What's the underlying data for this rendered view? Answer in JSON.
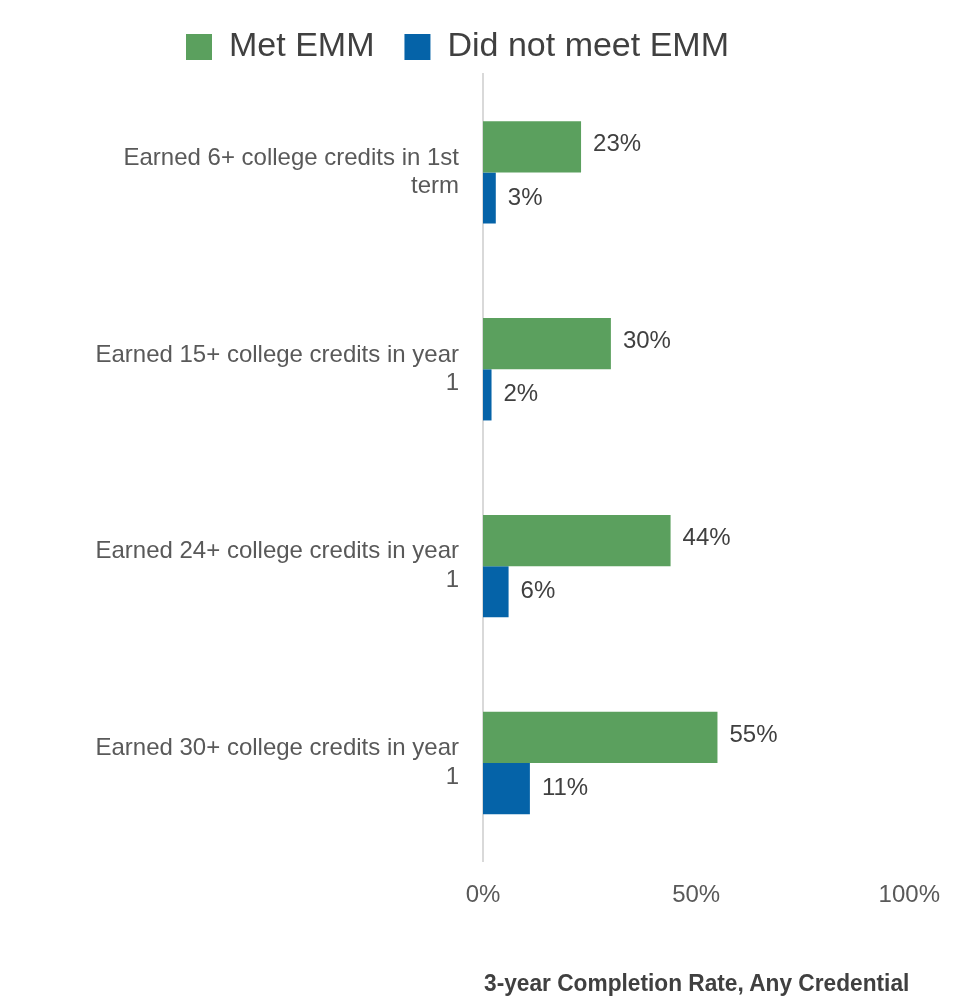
{
  "chart_data": {
    "type": "bar",
    "orientation": "horizontal",
    "xlabel": "3-year Completion Rate, Any Credential",
    "categories": [
      "Earned 6+ college credits in 1st term",
      "Earned 15+ college credits in year 1",
      "Earned 24+ college credits in year 1",
      "Earned 30+ college credits in year 1"
    ],
    "series": [
      {
        "name": "Met EMM",
        "color": "#5ba05e",
        "values": [
          23,
          30,
          44,
          55
        ],
        "value_labels": [
          "23%",
          "30%",
          "44%",
          "55%"
        ]
      },
      {
        "name": "Did not meet EMM",
        "color": "#0563a8",
        "values": [
          3,
          2,
          6,
          11
        ],
        "value_labels": [
          "3%",
          "2%",
          "6%",
          "11%"
        ]
      }
    ],
    "xlim": [
      0,
      100
    ],
    "xticks": [
      {
        "value": 0,
        "label": "0%"
      },
      {
        "value": 50,
        "label": "50%"
      },
      {
        "value": 100,
        "label": "100%"
      }
    ],
    "grid": false,
    "legend": "top"
  }
}
